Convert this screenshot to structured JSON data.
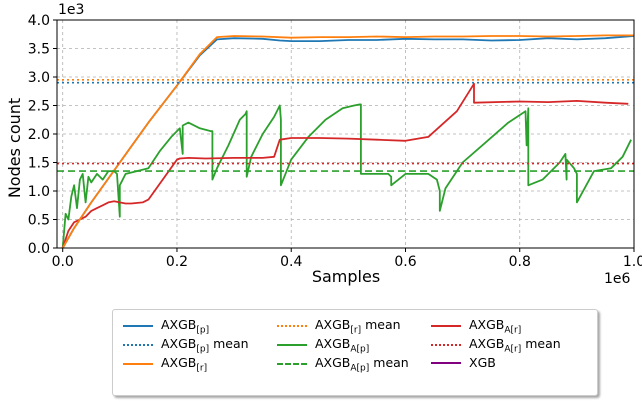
{
  "chart_data": {
    "type": "line",
    "xlabel": "Samples",
    "ylabel": "Nodes count",
    "x_multiplier": "1e6",
    "y_multiplier": "1e3",
    "xlim": [
      -0.01,
      1.0
    ],
    "ylim": [
      0.0,
      4.0
    ],
    "x_ticks": [
      "0.0",
      "0.2",
      "0.4",
      "0.6",
      "0.8",
      "1.0"
    ],
    "y_ticks": [
      "0.0",
      "0.5",
      "1.0",
      "1.5",
      "2.0",
      "2.5",
      "3.0",
      "3.5",
      "4.0"
    ],
    "grid": true,
    "legend_position": "below the plot",
    "series": [
      {
        "name": "AXGB[p]",
        "color": "#1f77b4",
        "style": "solid",
        "x": [
          0,
          0.02,
          0.05,
          0.1,
          0.15,
          0.2,
          0.24,
          0.27,
          0.3,
          0.35,
          0.38,
          0.4,
          0.45,
          0.5,
          0.55,
          0.6,
          0.65,
          0.7,
          0.75,
          0.8,
          0.85,
          0.9,
          0.95,
          1.0
        ],
        "y": [
          0,
          0.35,
          0.8,
          1.5,
          2.2,
          2.85,
          3.38,
          3.66,
          3.68,
          3.67,
          3.64,
          3.63,
          3.63,
          3.65,
          3.65,
          3.67,
          3.66,
          3.66,
          3.64,
          3.65,
          3.68,
          3.66,
          3.68,
          3.72
        ]
      },
      {
        "name": "AXGB[p] mean",
        "color": "#1f77b4",
        "style": "dotted",
        "x": [
          -0.01,
          1.0
        ],
        "y": [
          2.9,
          2.9
        ]
      },
      {
        "name": "AXGB[r]",
        "color": "#ff7f0e",
        "style": "solid",
        "x": [
          0,
          0.02,
          0.05,
          0.1,
          0.15,
          0.2,
          0.24,
          0.27,
          0.3,
          0.35,
          0.4,
          0.45,
          0.5,
          0.55,
          0.6,
          0.65,
          0.7,
          0.75,
          0.8,
          0.85,
          0.9,
          0.95,
          1.0
        ],
        "y": [
          0,
          0.35,
          0.8,
          1.5,
          2.2,
          2.85,
          3.4,
          3.7,
          3.72,
          3.71,
          3.69,
          3.7,
          3.7,
          3.71,
          3.7,
          3.71,
          3.71,
          3.72,
          3.72,
          3.71,
          3.72,
          3.73,
          3.73
        ]
      },
      {
        "name": "AXGB[r] mean",
        "color": "#ff7f0e",
        "style": "dotted",
        "x": [
          -0.01,
          1.0
        ],
        "y": [
          2.95,
          2.95
        ]
      },
      {
        "name": "AXGB_A[p]",
        "color": "#2ca02c",
        "style": "solid",
        "x": [
          0,
          0.005,
          0.01,
          0.015,
          0.02,
          0.025,
          0.03,
          0.035,
          0.04,
          0.045,
          0.05,
          0.06,
          0.07,
          0.08,
          0.09,
          0.095,
          0.1,
          0.1,
          0.11,
          0.13,
          0.15,
          0.17,
          0.19,
          0.205,
          0.21,
          0.21,
          0.22,
          0.24,
          0.26,
          0.262,
          0.262,
          0.27,
          0.29,
          0.31,
          0.32,
          0.322,
          0.322,
          0.33,
          0.35,
          0.37,
          0.38,
          0.382,
          0.382,
          0.4,
          0.43,
          0.46,
          0.49,
          0.51,
          0.52,
          0.522,
          0.522,
          0.57,
          0.575,
          0.575,
          0.6,
          0.64,
          0.655,
          0.66,
          0.66,
          0.67,
          0.7,
          0.74,
          0.78,
          0.81,
          0.812,
          0.815,
          0.815,
          0.84,
          0.87,
          0.88,
          0.882,
          0.882,
          0.895,
          0.9,
          0.9,
          0.93,
          0.96,
          0.98,
          0.995
        ],
        "y": [
          0,
          0.6,
          0.5,
          0.9,
          1.1,
          0.7,
          1.2,
          1.3,
          0.8,
          1.25,
          1.15,
          1.3,
          1.2,
          1.35,
          1.35,
          1.3,
          0.55,
          1.1,
          1.3,
          1.35,
          1.4,
          1.7,
          1.95,
          2.1,
          1.65,
          2.15,
          2.2,
          2.1,
          2.05,
          2.05,
          1.2,
          1.4,
          1.8,
          2.25,
          2.35,
          2.4,
          1.25,
          1.6,
          2.0,
          2.3,
          2.5,
          2.25,
          1.1,
          1.55,
          1.95,
          2.25,
          2.45,
          2.5,
          2.52,
          2.52,
          1.3,
          1.3,
          1.25,
          1.1,
          1.3,
          1.3,
          1.2,
          1.0,
          0.65,
          1.05,
          1.5,
          1.85,
          2.2,
          2.4,
          1.8,
          2.45,
          1.1,
          1.2,
          1.5,
          1.65,
          1.2,
          1.55,
          1.4,
          1.3,
          0.8,
          1.35,
          1.4,
          1.6,
          1.9
        ]
      },
      {
        "name": "AXGB_A[p] mean",
        "color": "#2ca02c",
        "style": "dashed",
        "x": [
          -0.01,
          1.0
        ],
        "y": [
          1.35,
          1.35
        ]
      },
      {
        "name": "AXGB_A[r]",
        "color": "#d62728",
        "style": "solid",
        "x": [
          0,
          0.01,
          0.02,
          0.03,
          0.04,
          0.05,
          0.06,
          0.07,
          0.08,
          0.09,
          0.1,
          0.11,
          0.12,
          0.14,
          0.15,
          0.2,
          0.205,
          0.22,
          0.25,
          0.3,
          0.35,
          0.37,
          0.38,
          0.4,
          0.45,
          0.5,
          0.55,
          0.6,
          0.64,
          0.69,
          0.72,
          0.72,
          0.8,
          0.85,
          0.9,
          0.95,
          0.99
        ],
        "y": [
          0,
          0.3,
          0.45,
          0.5,
          0.55,
          0.65,
          0.7,
          0.75,
          0.8,
          0.82,
          0.8,
          0.78,
          0.78,
          0.8,
          0.85,
          1.55,
          1.57,
          1.58,
          1.57,
          1.58,
          1.58,
          1.6,
          1.9,
          1.93,
          1.93,
          1.92,
          1.9,
          1.88,
          1.95,
          2.4,
          2.88,
          2.55,
          2.57,
          2.56,
          2.58,
          2.55,
          2.53
        ]
      },
      {
        "name": "AXGB_A[r] mean",
        "color": "#d62728",
        "style": "dotted",
        "x": [
          -0.01,
          1.0
        ],
        "y": [
          1.48,
          1.48
        ]
      },
      {
        "name": "XGB",
        "color": "#800080",
        "style": "solid",
        "x": [],
        "y": []
      }
    ]
  },
  "legend": {
    "items": [
      {
        "base": "AXGB",
        "sub": "[p]",
        "suffix": ""
      },
      {
        "base": "AXGB",
        "sub": "[p]",
        "suffix": " mean"
      },
      {
        "base": "AXGB",
        "sub": "[r]",
        "suffix": ""
      },
      {
        "base": "AXGB",
        "sub": "[r]",
        "suffix": " mean"
      },
      {
        "base": "AXGB",
        "sub": "A[p]",
        "suffix": ""
      },
      {
        "base": "AXGB",
        "sub": "A[p]",
        "suffix": " mean"
      },
      {
        "base": "AXGB",
        "sub": "A[r]",
        "suffix": ""
      },
      {
        "base": "AXGB",
        "sub": "A[r]",
        "suffix": " mean"
      },
      {
        "base": "XGB",
        "sub": "",
        "suffix": ""
      }
    ]
  }
}
